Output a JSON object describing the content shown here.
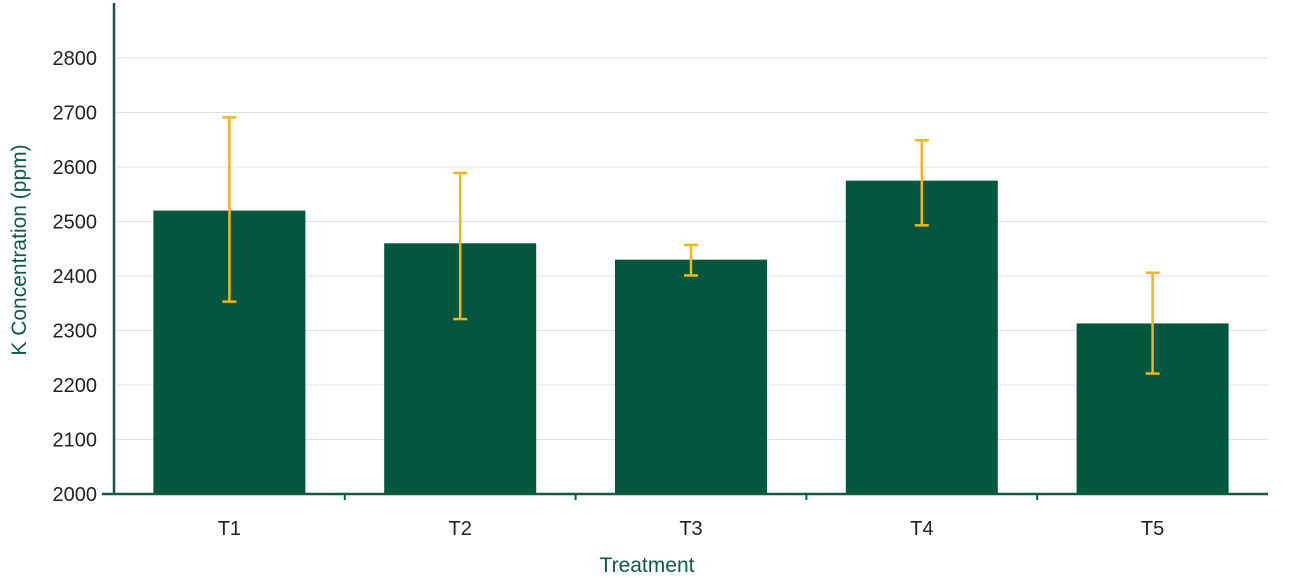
{
  "chart_data": {
    "type": "bar",
    "title": "",
    "xlabel": "Treatment",
    "ylabel": "K Concentration (ppm)",
    "categories": [
      "T1",
      "T2",
      "T3",
      "T4",
      "T5"
    ],
    "values": [
      2520,
      2460,
      2430,
      2575,
      2313
    ],
    "error_low": [
      2353,
      2321,
      2401,
      2493,
      2221
    ],
    "error_high": [
      2691,
      2589,
      2457,
      2649,
      2406
    ],
    "ylim": [
      2000,
      2800
    ],
    "yticks": [
      2000,
      2100,
      2200,
      2300,
      2400,
      2500,
      2600,
      2700,
      2800
    ],
    "grid": true,
    "legend": "none",
    "colors": {
      "bar": "#02573E",
      "error_bar": "#F4B41A",
      "axis": "#0D5C3F",
      "grid": "#DDE2E0",
      "tick_text": "#222222",
      "axis_title": "#0D5C3F"
    }
  }
}
